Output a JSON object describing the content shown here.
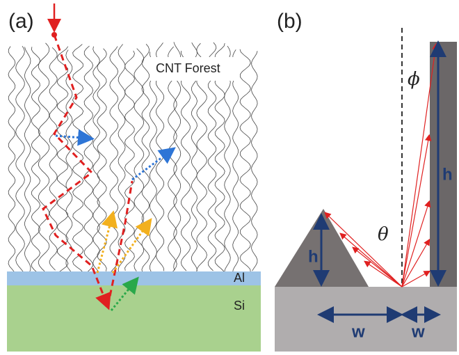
{
  "panel_a": {
    "label": "(a)",
    "title": "CNT Forest",
    "layers": [
      "Al",
      "Si"
    ]
  },
  "panel_b": {
    "label": "(b)",
    "angles": [
      "ϕ",
      "θ"
    ],
    "dimensions": {
      "pyramid_height": "h",
      "wall_height": "h",
      "pyramid_width": "w",
      "gap_width": "w"
    }
  }
}
